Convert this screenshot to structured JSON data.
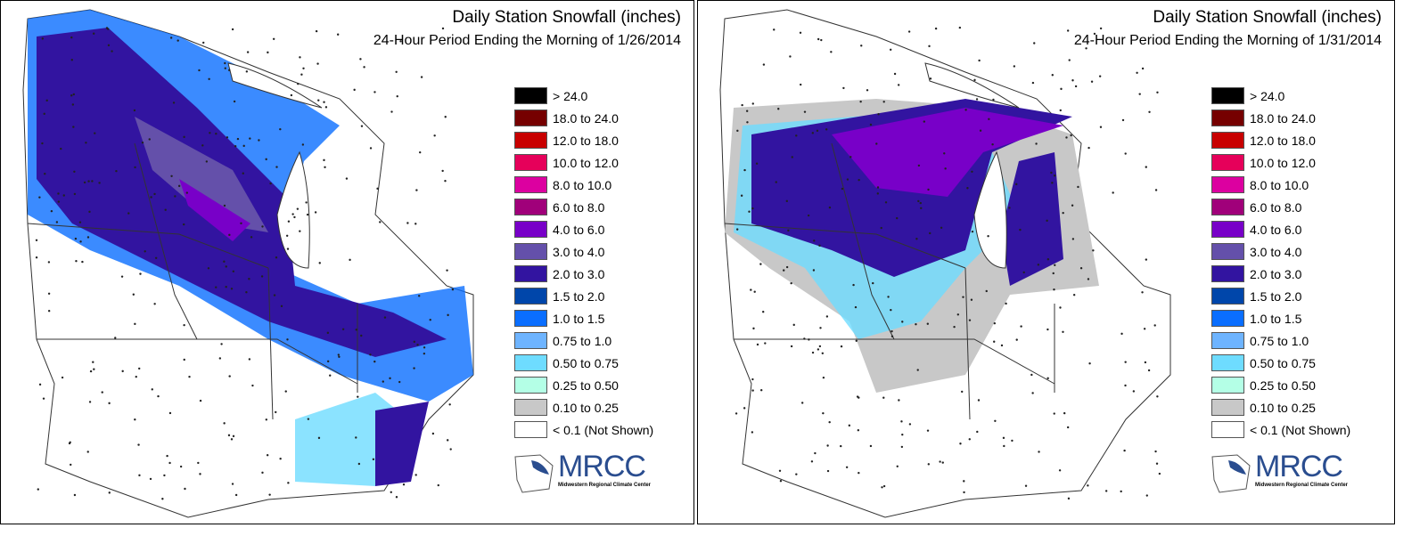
{
  "panels": [
    {
      "title": "Daily Station Snowfall (inches)",
      "subtitle": "24-Hour Period Ending the Morning of 1/26/2014"
    },
    {
      "title": "Daily Station Snowfall (inches)",
      "subtitle": "24-Hour Period Ending the Morning of 1/31/2014"
    }
  ],
  "legend": [
    {
      "label": "> 24.0",
      "color": "#000000"
    },
    {
      "label": "18.0 to 24.0",
      "color": "#760000"
    },
    {
      "label": "12.0 to 18.0",
      "color": "#c80000"
    },
    {
      "label": "10.0 to 12.0",
      "color": "#e6005a"
    },
    {
      "label": "8.0 to 10.0",
      "color": "#dc00a0"
    },
    {
      "label": "6.0 to 8.0",
      "color": "#a0007a"
    },
    {
      "label": "4.0 to 6.0",
      "color": "#7800c8"
    },
    {
      "label": "3.0 to 4.0",
      "color": "#6450aa"
    },
    {
      "label": "2.0 to 3.0",
      "color": "#3214a0"
    },
    {
      "label": "1.5 to 2.0",
      "color": "#0046aa"
    },
    {
      "label": "1.0 to 1.5",
      "color": "#0a6eff"
    },
    {
      "label": "0.75 to 1.0",
      "color": "#6eb4ff"
    },
    {
      "label": "0.50 to 0.75",
      "color": "#6edcff"
    },
    {
      "label": "0.25 to 0.50",
      "color": "#b4ffe6"
    },
    {
      "label": "0.10 to 0.25",
      "color": "#c8c8c8"
    },
    {
      "label": "< 0.1 (Not Shown)",
      "color": "#ffffff"
    }
  ],
  "logo": {
    "name": "MRCC",
    "full": "Midwestern Regional Climate Center"
  }
}
